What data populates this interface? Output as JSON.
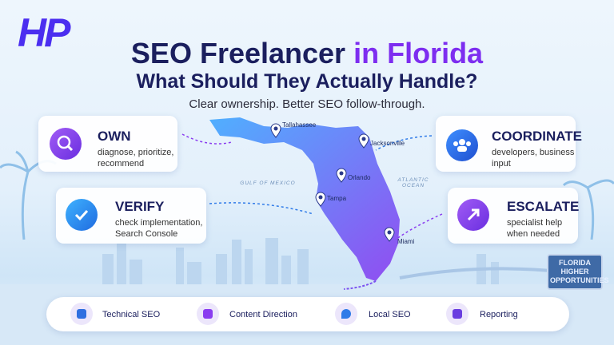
{
  "header": {
    "logo": "HP",
    "title_main": "SEO Freelancer",
    "title_accent": "in Florida",
    "title_line2": "What Should They Actually Handle?",
    "subtitle": "Clear ownership. Better SEO follow-through."
  },
  "cards": [
    {
      "title": "OWN",
      "text": "diagnose, prioritize, recommend"
    },
    {
      "title": "VERIFY",
      "text": "check implementation, Search Console"
    },
    {
      "title": "COORDINATE",
      "text": "developers, business input"
    },
    {
      "title": "ESCALATE",
      "text": "specialist help when needed"
    }
  ],
  "map": {
    "cities": [
      "Tallahassee",
      "Jacksonville",
      "Orlando",
      "Tampa",
      "Miami"
    ],
    "gulf_label": "GULF OF MEXICO",
    "ocean_label": "ATLANTIC OCEAN"
  },
  "sign": "FLORIDA HIGHER OPPORTUNITIES",
  "footer": {
    "items": [
      "Technical SEO",
      "Content Direction",
      "Local SEO",
      "Reporting"
    ]
  }
}
